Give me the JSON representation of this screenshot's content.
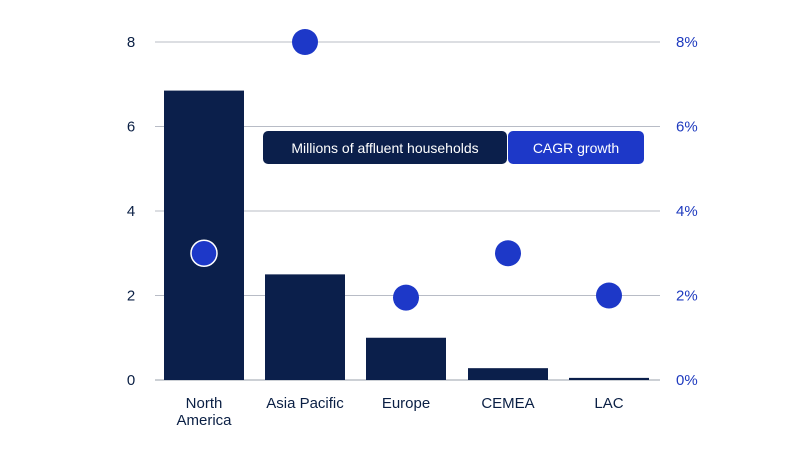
{
  "colors": {
    "bar": "#0b1f4b",
    "dot": "#1d38c8",
    "grid": "#b8bcc6",
    "left_tick": "#0a1f44",
    "right_tick": "#1f3bbf",
    "legend_bars_bg": "#0b1f4b",
    "legend_cagr_bg": "#1d38c8"
  },
  "legend": {
    "bars_label": "Millions of affluent households",
    "cagr_label": "CAGR growth"
  },
  "chart_data": {
    "type": "bar",
    "categories": [
      "North America",
      "Asia Pacific",
      "Europe",
      "CEMEA",
      "LAC"
    ],
    "category_lines": [
      [
        "North",
        "America"
      ],
      [
        "Asia Pacific"
      ],
      [
        "Europe"
      ],
      [
        "CEMEA"
      ],
      [
        "LAC"
      ]
    ],
    "series": [
      {
        "name": "Millions of affluent households",
        "axis": "left",
        "mark": "bar",
        "values": [
          6.85,
          2.5,
          1.0,
          0.28,
          0.05
        ]
      },
      {
        "name": "CAGR growth",
        "axis": "right",
        "mark": "dot",
        "unit": "%",
        "values": [
          3.0,
          8.0,
          1.95,
          3.0,
          2.0
        ]
      }
    ],
    "y_left": {
      "ticks": [
        0,
        2,
        4,
        6,
        8
      ],
      "tick_labels": [
        "0",
        "2",
        "4",
        "6",
        "8"
      ],
      "range": [
        0,
        8
      ]
    },
    "y_right": {
      "ticks": [
        0,
        2,
        4,
        6,
        8
      ],
      "tick_labels": [
        "0%",
        "2%",
        "4%",
        "6%",
        "8%"
      ],
      "range": [
        0,
        8
      ]
    },
    "grid": true,
    "legend_position": "center"
  }
}
